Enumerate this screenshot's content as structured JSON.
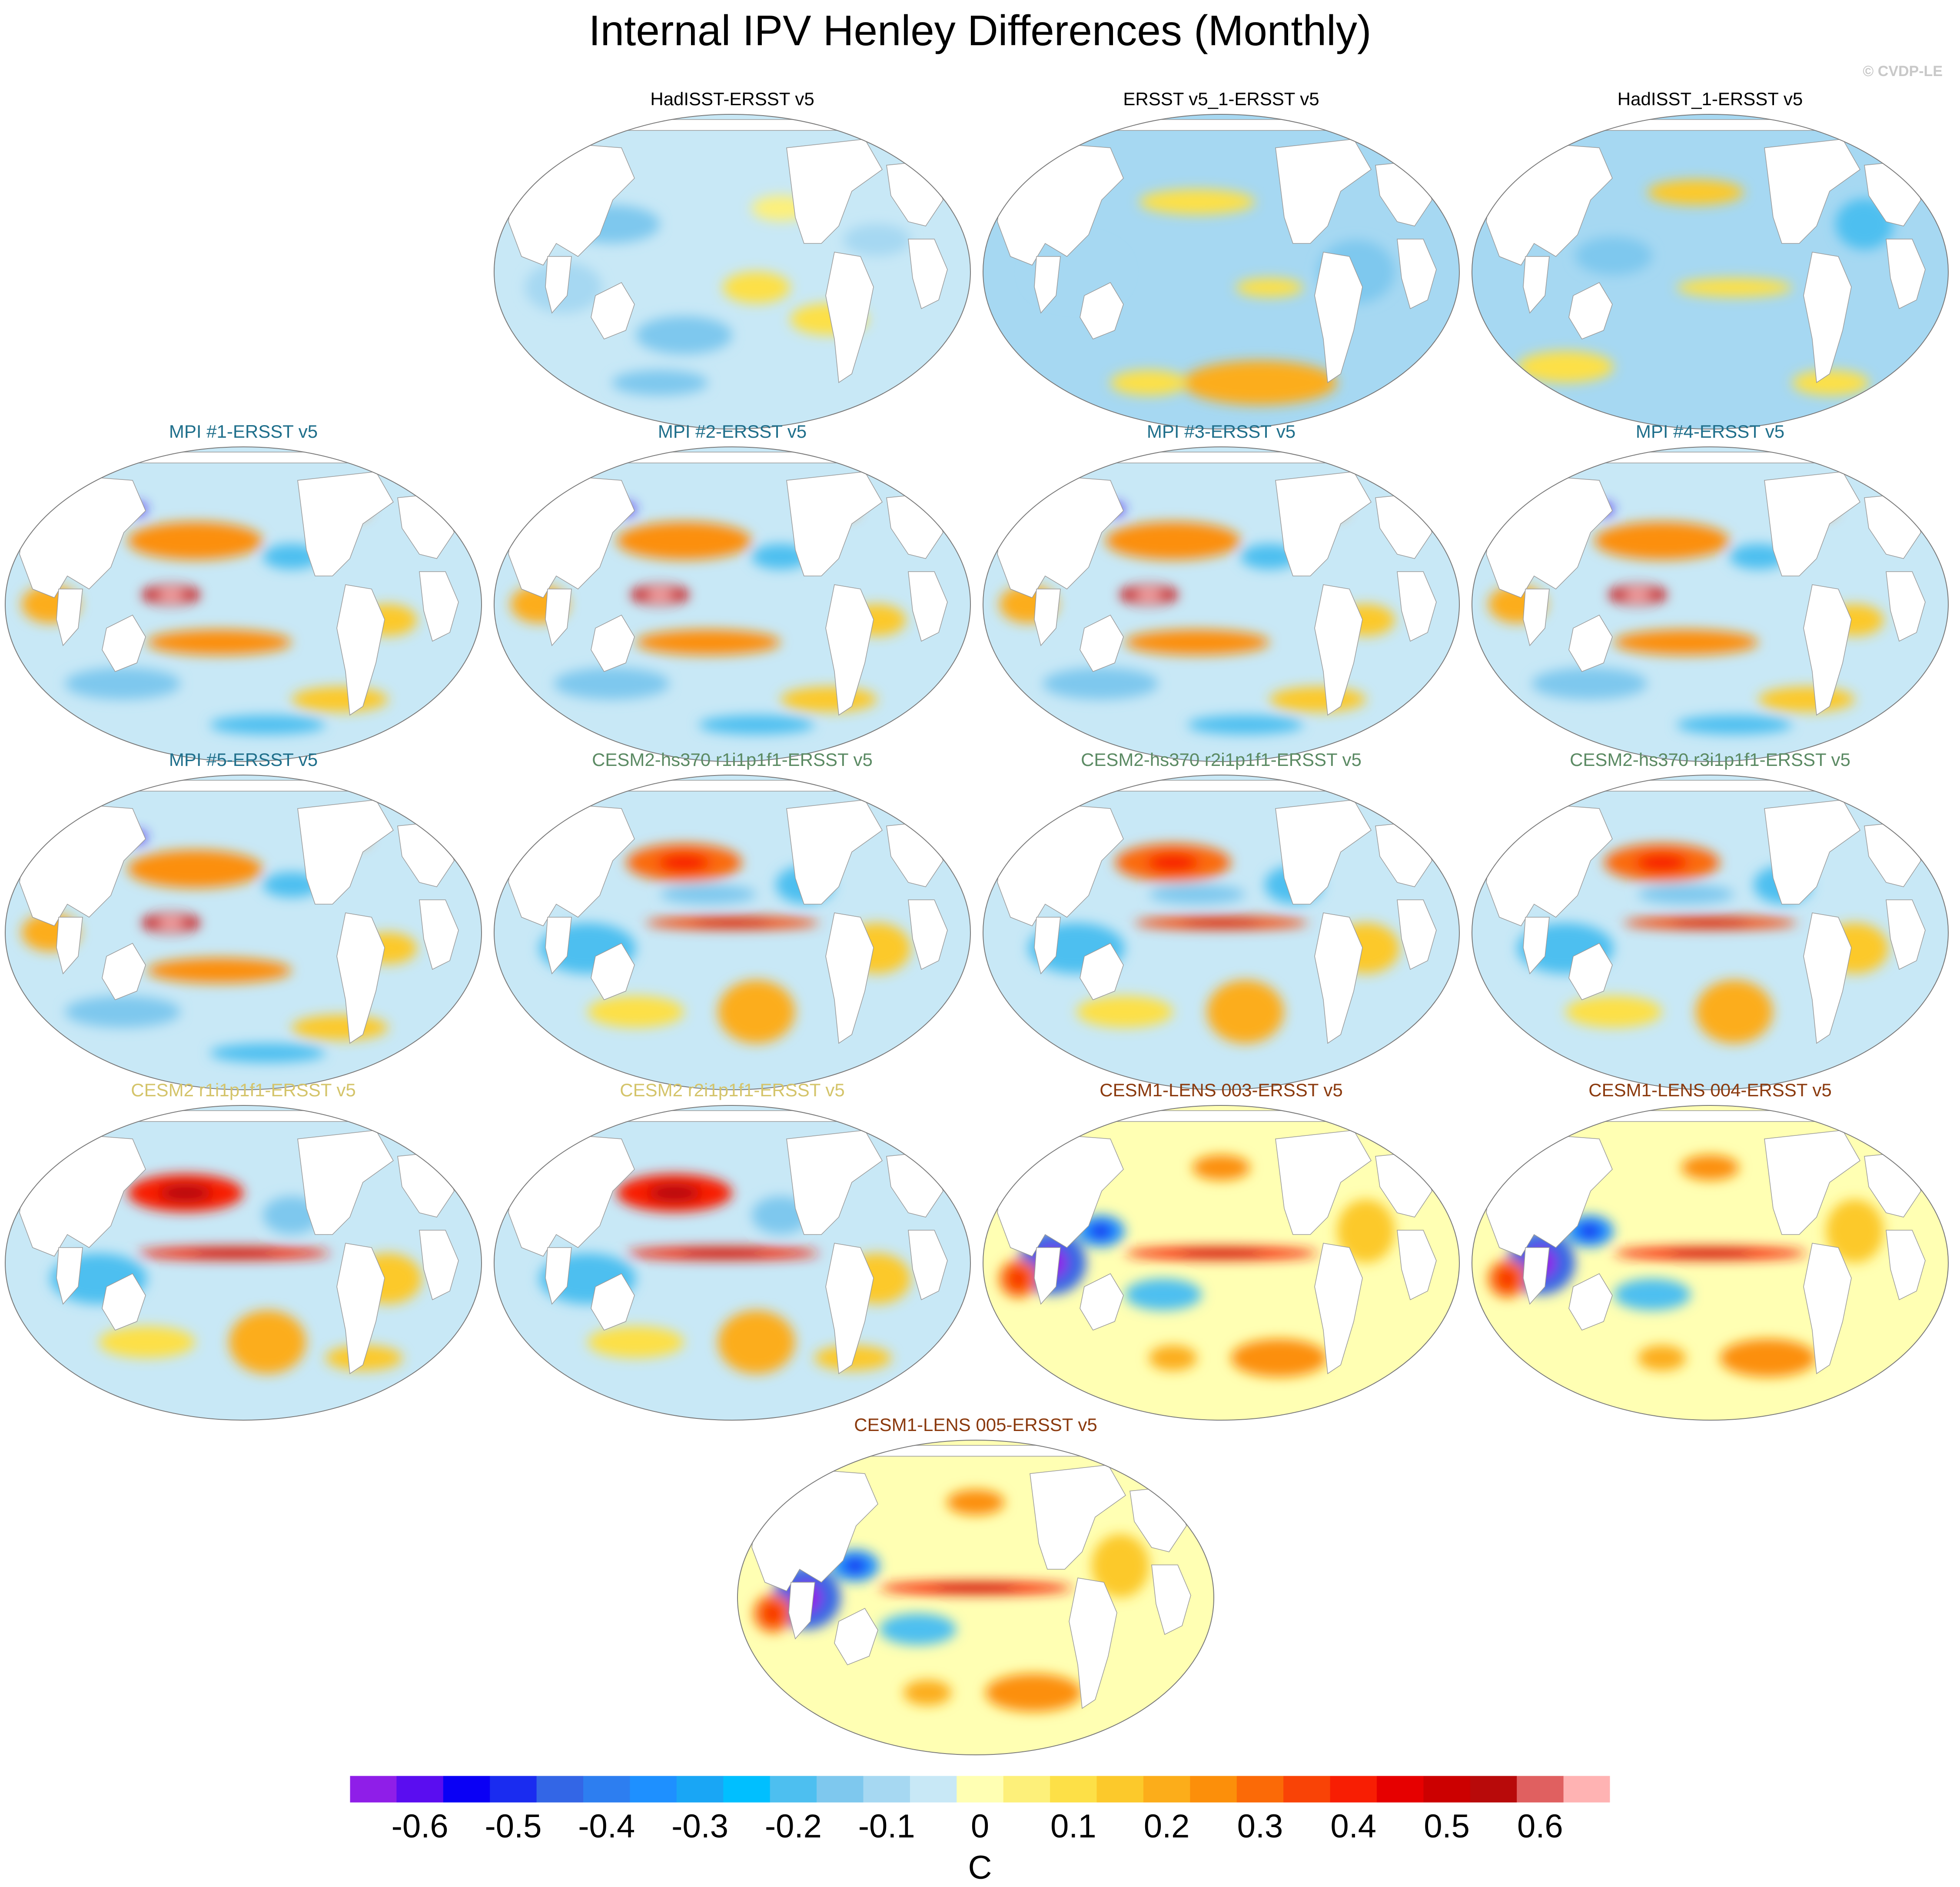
{
  "title": "Internal IPV Henley Differences (Monthly)",
  "watermark": "© CVDP-LE",
  "panels": [
    {
      "title": "HadISST-ERSST v5",
      "title_color": "#000000",
      "pattern": "obs1"
    },
    {
      "title": "ERSST v5_1-ERSST v5",
      "title_color": "#000000",
      "pattern": "obs2"
    },
    {
      "title": "HadISST_1-ERSST v5",
      "title_color": "#000000",
      "pattern": "obs3"
    },
    {
      "title": "MPI #1-ERSST v5",
      "title_color": "#1f6f8b",
      "pattern": "mpi"
    },
    {
      "title": "MPI #2-ERSST v5",
      "title_color": "#1f6f8b",
      "pattern": "mpi"
    },
    {
      "title": "MPI #3-ERSST v5",
      "title_color": "#1f6f8b",
      "pattern": "mpi"
    },
    {
      "title": "MPI #4-ERSST v5",
      "title_color": "#1f6f8b",
      "pattern": "mpi"
    },
    {
      "title": "MPI #5-ERSST v5",
      "title_color": "#1f6f8b",
      "pattern": "mpi"
    },
    {
      "title": "CESM2-hs370 r1i1p1f1-ERSST v5",
      "title_color": "#5b8a63",
      "pattern": "hs370"
    },
    {
      "title": "CESM2-hs370 r2i1p1f1-ERSST v5",
      "title_color": "#5b8a63",
      "pattern": "hs370"
    },
    {
      "title": "CESM2-hs370 r3i1p1f1-ERSST v5",
      "title_color": "#5b8a63",
      "pattern": "hs370"
    },
    {
      "title": "CESM2 r1i1p1f1-ERSST v5",
      "title_color": "#d4c46a",
      "pattern": "cesm2"
    },
    {
      "title": "CESM2 r2i1p1f1-ERSST v5",
      "title_color": "#d4c46a",
      "pattern": "cesm2"
    },
    {
      "title": "CESM1-LENS 003-ERSST v5",
      "title_color": "#8b3a0e",
      "pattern": "lens"
    },
    {
      "title": "CESM1-LENS 004-ERSST v5",
      "title_color": "#8b3a0e",
      "pattern": "lens"
    },
    {
      "title": "CESM1-LENS 005-ERSST v5",
      "title_color": "#8b3a0e",
      "pattern": "lens"
    }
  ],
  "colorbar": {
    "unit": "C",
    "colors": [
      "#8f1ee8",
      "#5a0df0",
      "#0a00f5",
      "#1a2cf0",
      "#3366e6",
      "#2d7ef0",
      "#1e90ff",
      "#19a6f5",
      "#00bfff",
      "#4dbff0",
      "#7ec8ee",
      "#a6d8f2",
      "#c8e8f6",
      "#ffffb3",
      "#fdf07a",
      "#fde047",
      "#fcc92b",
      "#fcad1a",
      "#fc8f0a",
      "#fb6a07",
      "#f94306",
      "#f81e03",
      "#e60000",
      "#cc0000",
      "#b80a0a",
      "#e06060",
      "#ffb3b3"
    ],
    "labels": [
      "-0.6",
      "-0.5",
      "-0.4",
      "-0.3",
      "-0.2",
      "-0.1",
      "0",
      "0.1",
      "0.2",
      "0.3",
      "0.4",
      "0.5",
      "0.6"
    ]
  }
}
